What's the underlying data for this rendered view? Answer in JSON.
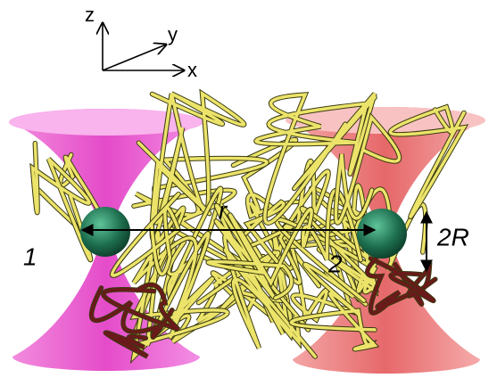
{
  "axes": {
    "z": "z",
    "y": "y",
    "x": "x"
  },
  "labels": {
    "distance": "r",
    "bead_1": "1",
    "bead_2": "2",
    "diameter": "2R"
  }
}
